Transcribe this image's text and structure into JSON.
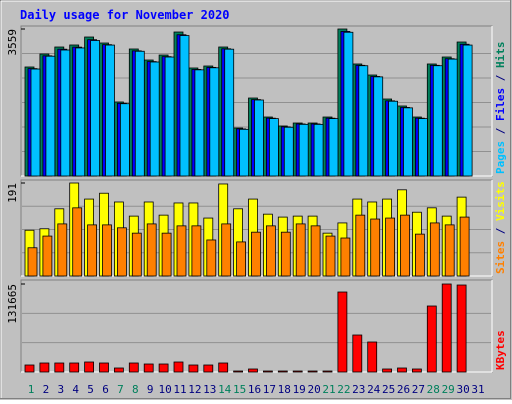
{
  "title": "Daily usage for November 2020",
  "legend_separator": " / ",
  "chart_data": [
    {
      "type": "bar",
      "ylim": [
        0,
        3559
      ],
      "yticks": [
        3559
      ],
      "series": [
        {
          "name": "Hits",
          "color": "#00805C",
          "values": [
            2639,
            2954,
            3123,
            3172,
            3365,
            3220,
            1792,
            3075,
            2808,
            2929,
            3486,
            2615,
            2663,
            3123,
            1162,
            1888,
            1428,
            1211,
            1283,
            1283,
            1428,
            3559,
            2712,
            2445,
            1864,
            1695,
            1428,
            2712,
            2881,
            3244,
            null
          ]
        },
        {
          "name": "Files",
          "color": "#0000FF",
          "values": [
            2600,
            2910,
            3070,
            3120,
            3300,
            3180,
            1760,
            3030,
            2770,
            2890,
            3420,
            2580,
            2630,
            3080,
            1140,
            1850,
            1400,
            1190,
            1260,
            1260,
            1400,
            3500,
            2680,
            2410,
            1820,
            1660,
            1400,
            2680,
            2840,
            3190,
            null
          ]
        },
        {
          "name": "Pages",
          "color": "#00C0FF",
          "values": [
            2590,
            2900,
            3050,
            3100,
            3280,
            3170,
            1750,
            3020,
            2760,
            2880,
            3400,
            2570,
            2620,
            3070,
            1130,
            1840,
            1390,
            1180,
            1250,
            1250,
            1390,
            3480,
            2670,
            2400,
            1810,
            1650,
            1390,
            2670,
            2830,
            3170,
            null
          ]
        }
      ]
    },
    {
      "type": "bar",
      "ylim": [
        0,
        191
      ],
      "yticks": [
        191
      ],
      "series": [
        {
          "name": "Visits",
          "color": "#FFFF00",
          "values": [
            94,
            97,
            138,
            191,
            158,
            170,
            152,
            123,
            152,
            125,
            150,
            150,
            119,
            189,
            138,
            158,
            127,
            121,
            123,
            123,
            88,
            109,
            158,
            152,
            158,
            177,
            131,
            140,
            123,
            162,
            null
          ]
        },
        {
          "name": "Sites",
          "color": "#FF8000",
          "values": [
            58,
            82,
            107,
            140,
            105,
            105,
            99,
            88,
            107,
            88,
            103,
            103,
            74,
            107,
            70,
            90,
            103,
            90,
            107,
            103,
            82,
            78,
            125,
            117,
            119,
            125,
            86,
            109,
            105,
            121,
            null
          ]
        }
      ]
    },
    {
      "type": "bar",
      "ylim": [
        0,
        131665
      ],
      "yticks": [
        131665
      ],
      "categories": [
        "1",
        "2",
        "3",
        "4",
        "5",
        "6",
        "7",
        "8",
        "9",
        "10",
        "11",
        "12",
        "13",
        "14",
        "15",
        "16",
        "17",
        "18",
        "19",
        "20",
        "21",
        "22",
        "23",
        "24",
        "25",
        "26",
        "27",
        "28",
        "29",
        "30",
        "31"
      ],
      "highlighted": [
        0,
        6,
        7,
        13,
        14,
        20,
        21,
        27,
        28
      ],
      "highlight_color": "#00805C",
      "category_color": "#000080",
      "series": [
        {
          "name": "KBytes",
          "color": "#FF0000",
          "values": [
            10472,
            13464,
            13464,
            13464,
            14960,
            13464,
            5984,
            13464,
            11968,
            11968,
            14960,
            10472,
            10472,
            13464,
            1496,
            4488,
            1496,
            1496,
            1496,
            1496,
            1496,
            119680,
            55352,
            44880,
            4488,
            5984,
            4488,
            98736,
            131665,
            130152,
            null
          ]
        }
      ]
    }
  ]
}
